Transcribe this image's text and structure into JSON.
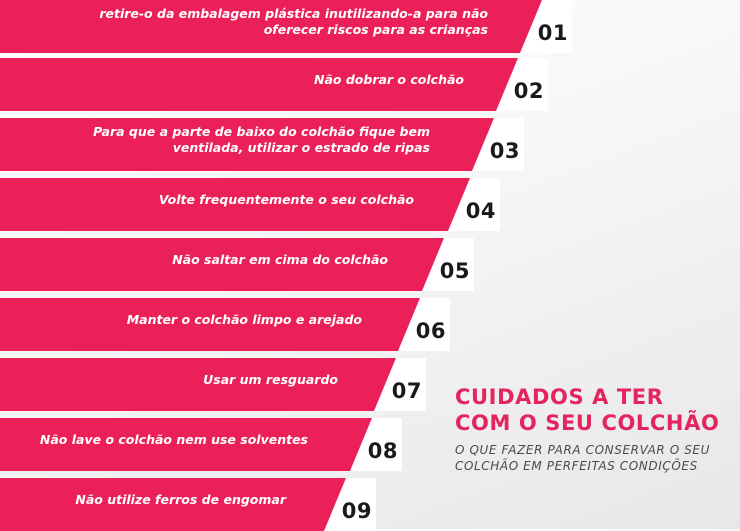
{
  "items": [
    {
      "number": "01",
      "text": "retire-o da embalagem plástica inutilizando-a para não oferecer riscos para as crianças"
    },
    {
      "number": "02",
      "text": "Não dobrar o colchão"
    },
    {
      "number": "03",
      "text": "Para que a parte de baixo do colchão fique bem ventilada, utilizar o estrado de ripas"
    },
    {
      "number": "04",
      "text": "Volte frequentemente o seu colchão"
    },
    {
      "number": "05",
      "text": "Não saltar em cima do colchão"
    },
    {
      "number": "06",
      "text": "Manter o colchão limpo e arejado"
    },
    {
      "number": "07",
      "text": "Usar um resguardo"
    },
    {
      "number": "08",
      "text": "Não lave o colchão nem use solventes"
    },
    {
      "number": "09",
      "text": "Não utilize ferros de engomar"
    }
  ],
  "panel": {
    "title": "CUIDADOS A TER COM O SEU COLCHÃO",
    "subtitle": "O QUE FAZER PARA CONSERVAR O SEU COLCHÃO EM PERFEITAS CONDIÇÕES"
  },
  "colors": {
    "accent": "#ec2059",
    "title": "#e3245d",
    "number": "#1a1a1a"
  }
}
